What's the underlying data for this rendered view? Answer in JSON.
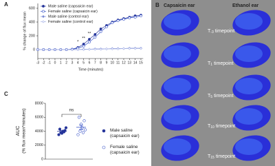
{
  "chart_data": [
    {
      "type": "line",
      "panel": "A",
      "x_label": "Time (minutes)",
      "y_label": "% change of flux mean",
      "x": [
        -3,
        -2,
        -1,
        0,
        1,
        2,
        3,
        4,
        5,
        6,
        7,
        8,
        9,
        10,
        11,
        12,
        13,
        14,
        15
      ],
      "xlim": [
        -3.5,
        15.4
      ],
      "xticks": [
        -3,
        -2,
        -1,
        0,
        1,
        2,
        3,
        4,
        5,
        6,
        7,
        8,
        9,
        10,
        11,
        12,
        13,
        14,
        15
      ],
      "ylim": [
        -130,
        670
      ],
      "yticks": [
        0,
        200,
        400,
        600
      ],
      "series": [
        {
          "name": "Male saline (capsaicin ear)",
          "color": "#25349a",
          "marker": "circle",
          "filled": true,
          "values": [
            0,
            0,
            0,
            0,
            0,
            0,
            5,
            30,
            80,
            150,
            220,
            300,
            350,
            400,
            430,
            450,
            470,
            490,
            500
          ]
        },
        {
          "name": "Female saline (capsaicin ear)",
          "color": "#3a55c8",
          "marker": "circle",
          "filled": false,
          "values": [
            0,
            0,
            0,
            0,
            0,
            0,
            5,
            20,
            50,
            110,
            180,
            260,
            330,
            390,
            420,
            440,
            460,
            470,
            490
          ]
        },
        {
          "name": "Male saline (control ear)",
          "color": "#7b8bd4",
          "marker": "diamond",
          "filled": true,
          "values": [
            0,
            0,
            0,
            0,
            0,
            0,
            0,
            0,
            5,
            5,
            10,
            10,
            10,
            15,
            15,
            15,
            20,
            20,
            20
          ]
        },
        {
          "name": "Female saline (control ear)",
          "color": "#a6b2e6",
          "marker": "diamond",
          "filled": false,
          "values": [
            0,
            0,
            0,
            0,
            0,
            0,
            0,
            0,
            0,
            5,
            5,
            5,
            10,
            10,
            10,
            15,
            15,
            15,
            15
          ]
        }
      ],
      "annotations": [
        {
          "text": "*",
          "x": 4
        },
        {
          "text": "**",
          "x": 5
        },
        {
          "text": "**",
          "x": 6
        }
      ]
    },
    {
      "type": "dot",
      "panel": "C",
      "y_label": "AUC",
      "y_label_sub": "(% flux mean*minutes)",
      "ylim": [
        0,
        8000
      ],
      "yticks": [
        0,
        2000,
        4000,
        6000,
        8000
      ],
      "series": [
        {
          "name": "Male saline (capsaicin ear)",
          "color": "#25349a",
          "filled": true,
          "values": [
            3500,
            3800,
            4000,
            4100,
            4300,
            3700,
            3900,
            4500
          ]
        },
        {
          "name": "Female saline (capsaicin ear)",
          "color": "#3a55c8",
          "filled": false,
          "values": [
            3500,
            4000,
            4500,
            5500,
            6000,
            5000,
            3800,
            4200
          ]
        }
      ],
      "comparison": "ns"
    }
  ],
  "panel_b": {
    "panel": "B",
    "columns": [
      "Capsaicin ear",
      "Ethanol ear"
    ],
    "timepoints": [
      {
        "label": "T",
        "sub": "-3",
        "suffix": "timepoint"
      },
      {
        "label": "T",
        "sub": "1",
        "suffix": "timepoint"
      },
      {
        "label": "T",
        "sub": "5",
        "suffix": "timepoint"
      },
      {
        "label": "T",
        "sub": "10",
        "suffix": "timepoint"
      },
      {
        "label": "T",
        "sub": "15",
        "suffix": "timepoint"
      }
    ]
  }
}
